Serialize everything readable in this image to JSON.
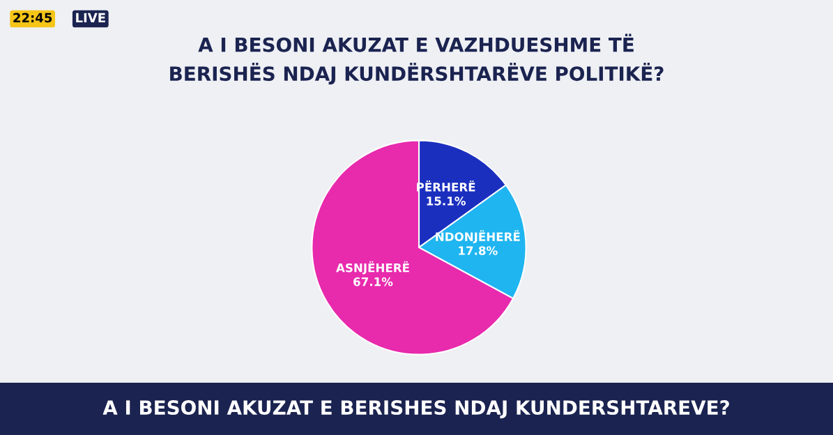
{
  "chart_data": {
    "type": "pie",
    "title": "A I BESONI AKUZAT E VAZHDUESHME TË\nBERISHËS NDAJ KUNDËRSHTARËVE POLITIKË?",
    "categories": [
      "PËRHERË",
      "NDONJËHERË",
      "ASNJËHERË"
    ],
    "values": [
      15.1,
      17.8,
      67.1
    ],
    "value_labels": [
      "15.1%",
      "17.8%",
      "67.1%"
    ],
    "colors": [
      "#1b2fbf",
      "#1fb5f0",
      "#e82aad"
    ],
    "annotations": [
      "A I BESONI AKUZAT E BERISHES NDAJ KUNDERSHTAREVE?",
      "22:45",
      "LIVE"
    ]
  }
}
